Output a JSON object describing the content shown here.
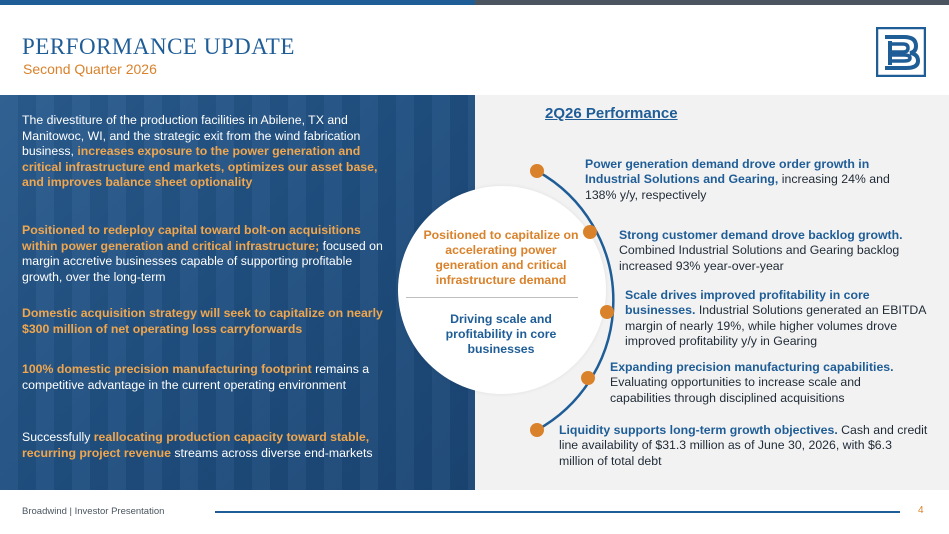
{
  "header": {
    "title": "PERFORMANCE UPDATE",
    "subtitle": "Second Quarter 2026"
  },
  "left_panel": [
    {
      "pre": "The divestiture of the production facilities in Abilene, TX and Manitowoc, WI, and the strategic exit from the wind fabrication business, ",
      "hl": "increases exposure to the power generation and critical infrastructure end markets, optimizes our asset base, and improves balance sheet optionality",
      "post": ""
    },
    {
      "pre": "",
      "hl": "Positioned to redeploy capital toward bolt-on acquisitions within power generation and critical infrastructure;",
      "post": " focused on margin accretive businesses capable of supporting profitable growth, over the long-term"
    },
    {
      "pre": "",
      "hl": "Domestic acquisition strategy will seek to capitalize on nearly $300 million of net operating loss carryforwards",
      "post": ""
    },
    {
      "pre": "",
      "hl": "100% domestic precision manufacturing footprint",
      "post": " remains a competitive advantage in the current operating environment"
    },
    {
      "pre": "Successfully ",
      "hl": "reallocating production capacity toward stable, recurring project revenue",
      "post": " streams across diverse end-markets"
    }
  ],
  "performance": {
    "heading": "2Q26 Performance",
    "circle_top": "Positioned to capitalize on accelerating power generation and critical infrastructure demand",
    "circle_bottom": "Driving scale and profitability in core businesses",
    "items": [
      {
        "hl": "Power generation demand drove order growth in Industrial Solutions and Gearing,",
        "text": " increasing 24% and 138% y/y, respectively"
      },
      {
        "hl": "Strong customer demand drove backlog growth.",
        "text": " Combined Industrial Solutions and Gearing backlog increased 93% year-over-year"
      },
      {
        "hl": "Scale drives improved profitability in core businesses.",
        "text": " Industrial Solutions generated an EBITDA margin of nearly 19%, while higher volumes drove improved profitability y/y in Gearing"
      },
      {
        "hl": "Expanding precision manufacturing capabilities.",
        "text": " Evaluating opportunities to increase scale and capabilities through disciplined acquisitions"
      },
      {
        "hl": "Liquidity supports long-term growth objectives.",
        "text": "  Cash and credit line availability of $31.3 million as of June 30, 2026, with $6.3 million of total debt"
      }
    ]
  },
  "footer": {
    "text": "Broadwind  | Investor Presentation",
    "page": "4"
  },
  "colors": {
    "brand_blue": "#1f5d97",
    "accent_orange": "#d9822b",
    "highlight_orange": "#f0a64d"
  }
}
